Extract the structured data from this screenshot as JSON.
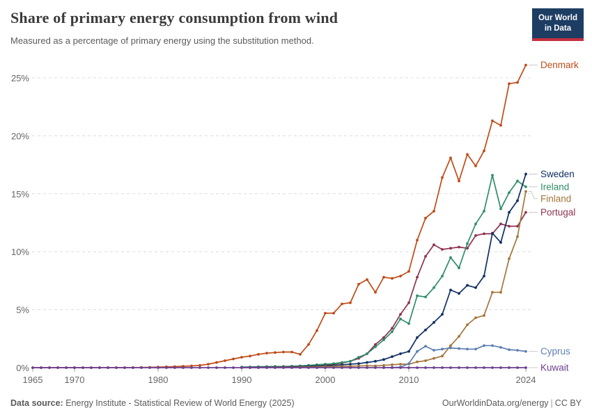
{
  "header": {
    "title": "Share of primary energy consumption from wind",
    "subtitle": "Measured as a percentage of primary energy using the substitution method.",
    "logo_line1": "Our World",
    "logo_line2": "in Data"
  },
  "footer": {
    "datasource_label": "Data source:",
    "datasource_text": "Energy Institute - Statistical Review of World Energy (2025)",
    "link": "OurWorldinData.org/energy",
    "separator": "|",
    "license": "CC BY"
  },
  "colors": {
    "grid": "#dcdcdc",
    "tick_text": "#666666",
    "connector": "#c8c8c8",
    "logo_bg": "#1d3d63",
    "logo_red": "#c5303e"
  },
  "chart_data": {
    "type": "line",
    "title": "Share of primary energy consumption from wind",
    "xlabel": "",
    "ylabel": "",
    "grid": "horizontal-dashed",
    "legend_position": "right-of-line-ends",
    "xlim": [
      1965,
      2024
    ],
    "ylim": [
      0,
      26.5
    ],
    "x_ticks": [
      1965,
      1970,
      1980,
      1990,
      2000,
      2010,
      2024
    ],
    "x_tick_labels": [
      "1965",
      "1970",
      "1980",
      "1990",
      "2000",
      "2010",
      "2024"
    ],
    "y_ticks": [
      0,
      5,
      10,
      15,
      20,
      25
    ],
    "y_tick_labels": [
      "0%",
      "5%",
      "10%",
      "15%",
      "20%",
      "25%"
    ],
    "series": [
      {
        "name": "Denmark",
        "color": "#bf4b18",
        "start_year": 1965,
        "values": [
          0,
          0,
          0,
          0,
          0,
          0,
          0,
          0,
          0,
          0,
          0,
          0,
          0.01,
          0.02,
          0.03,
          0.05,
          0.07,
          0.09,
          0.12,
          0.15,
          0.2,
          0.3,
          0.45,
          0.6,
          0.75,
          0.9,
          1.0,
          1.15,
          1.25,
          1.3,
          1.35,
          1.35,
          1.15,
          2.0,
          3.2,
          4.7,
          4.7,
          5.5,
          5.6,
          7.2,
          7.6,
          6.5,
          7.8,
          7.7,
          7.9,
          8.3,
          11.0,
          12.9,
          13.5,
          16.4,
          18.1,
          16.1,
          18.4,
          17.4,
          18.7,
          21.3,
          20.9,
          24.5,
          24.6,
          26.1
        ]
      },
      {
        "name": "Portugal",
        "color": "#8d3150",
        "start_year": 1990,
        "values": [
          0.01,
          0.01,
          0.02,
          0.02,
          0.03,
          0.03,
          0.04,
          0.05,
          0.1,
          0.15,
          0.2,
          0.3,
          0.4,
          0.55,
          0.8,
          1.2,
          2.0,
          2.6,
          3.4,
          4.6,
          5.6,
          7.8,
          9.6,
          10.6,
          10.2,
          10.3,
          10.4,
          10.3,
          11.4,
          11.55,
          11.55,
          12.4,
          12.2,
          12.2,
          13.4
        ]
      },
      {
        "name": "Ireland",
        "color": "#2f8e68",
        "start_year": 1990,
        "values": [
          0.05,
          0.06,
          0.08,
          0.09,
          0.1,
          0.1,
          0.12,
          0.15,
          0.2,
          0.25,
          0.3,
          0.35,
          0.45,
          0.55,
          0.9,
          1.2,
          1.8,
          2.4,
          3.1,
          4.2,
          3.8,
          6.2,
          6.1,
          6.9,
          7.9,
          9.5,
          8.6,
          10.7,
          12.4,
          13.5,
          16.6,
          13.7,
          15.1,
          16.1,
          15.6
        ]
      },
      {
        "name": "Sweden",
        "color": "#0e2e63",
        "start_year": 1990,
        "values": [
          0.02,
          0.03,
          0.03,
          0.05,
          0.05,
          0.07,
          0.08,
          0.1,
          0.12,
          0.15,
          0.17,
          0.2,
          0.25,
          0.3,
          0.35,
          0.45,
          0.55,
          0.7,
          0.95,
          1.2,
          1.4,
          2.6,
          3.25,
          3.9,
          4.6,
          6.7,
          6.4,
          7.1,
          6.9,
          7.9,
          11.6,
          10.8,
          13.4,
          14.4,
          16.7
        ]
      },
      {
        "name": "Finland",
        "color": "#a3763b",
        "start_year": 1990,
        "values": [
          0,
          0.01,
          0.01,
          0.02,
          0.02,
          0.03,
          0.03,
          0.05,
          0.06,
          0.07,
          0.1,
          0.1,
          0.12,
          0.12,
          0.15,
          0.17,
          0.15,
          0.2,
          0.25,
          0.3,
          0.3,
          0.5,
          0.6,
          0.8,
          1.0,
          1.9,
          2.7,
          3.7,
          4.3,
          4.5,
          6.5,
          6.5,
          9.4,
          11.3,
          15.2
        ]
      },
      {
        "name": "Cyprus",
        "color": "#5e7fb2",
        "start_year": 2007,
        "values": [
          0.01,
          0.01,
          0.05,
          0.35,
          1.4,
          1.85,
          1.5,
          1.6,
          1.7,
          1.65,
          1.6,
          1.6,
          1.9,
          1.9,
          1.75,
          1.55,
          1.5,
          1.4
        ]
      },
      {
        "name": "Kuwait",
        "color": "#6d3e91",
        "start_year": 1965,
        "values": [
          0,
          0,
          0,
          0,
          0,
          0,
          0,
          0,
          0,
          0,
          0,
          0,
          0,
          0,
          0,
          0,
          0,
          0,
          0,
          0,
          0,
          0,
          0,
          0,
          0,
          0,
          0,
          0,
          0,
          0,
          0,
          0,
          0,
          0,
          0,
          0,
          0,
          0,
          0,
          0,
          0,
          0,
          0,
          0,
          0,
          0,
          0,
          0,
          0,
          0,
          0,
          0,
          0,
          0,
          0,
          0,
          0,
          0,
          0,
          0
        ]
      }
    ]
  }
}
